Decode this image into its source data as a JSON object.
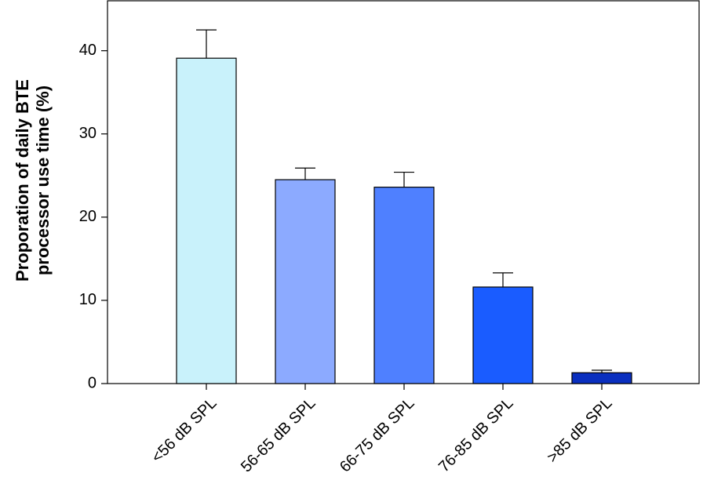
{
  "chart_data": {
    "type": "bar",
    "ylabel": [
      "Proporation of daily BTE",
      "processor use time (%)"
    ],
    "categories": [
      "<56 dB SPL",
      "56-65 dB SPL",
      "66-75 dB SPL",
      "76-85 dB SPL",
      ">85 dB SPL"
    ],
    "values": [
      39.1,
      24.5,
      23.6,
      11.6,
      1.3
    ],
    "errors": [
      3.4,
      1.4,
      1.8,
      1.7,
      0.3
    ],
    "colors": [
      "#c9f2fb",
      "#8caaff",
      "#4f80ff",
      "#1a5cff",
      "#0a2fbf"
    ],
    "ylim": [
      0,
      46
    ],
    "yticks": [
      0,
      10,
      20,
      30,
      40
    ]
  }
}
